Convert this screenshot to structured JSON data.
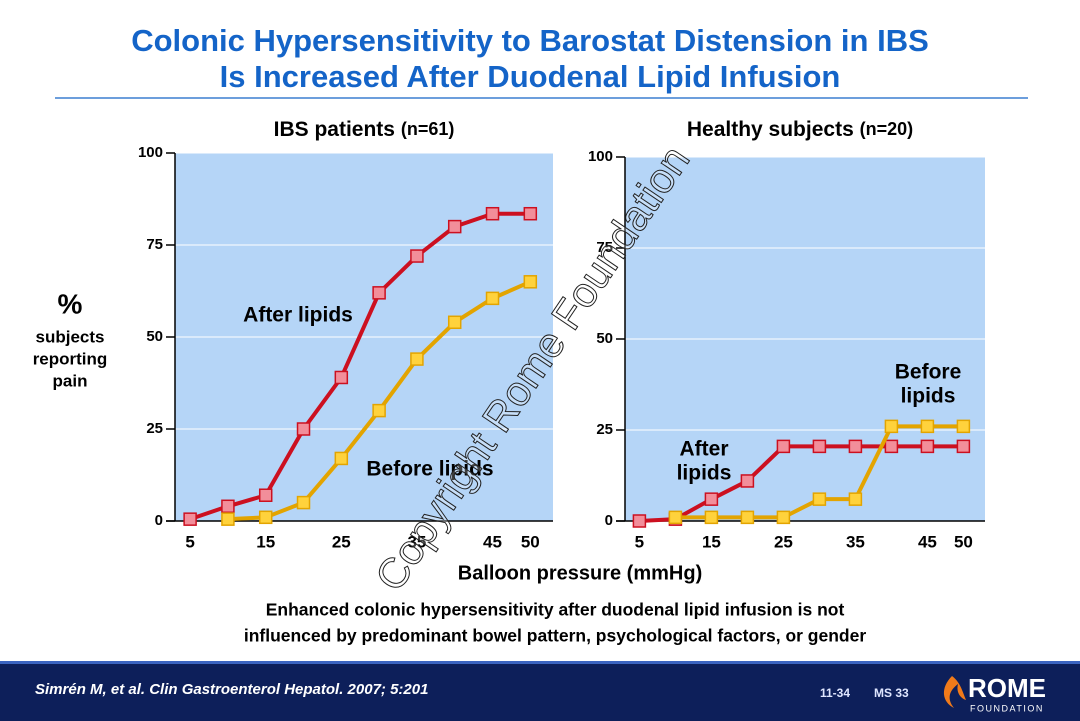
{
  "slide": {
    "title_lines": [
      "Colonic Hypersensitivity to Barostat Distension in IBS",
      "Is Increased After Duodenal Lipid Infusion"
    ],
    "x_axis_label": "Balloon pressure (mmHg)",
    "caption_lines": [
      "Enhanced colonic hypersensitivity after duodenal lipid infusion is not",
      "influenced by predominant  bowel pattern, psychological factors, or gender"
    ],
    "watermark": "Copyright Rome Foundation",
    "citation": "Simrén M, et al. Clin Gastroenterol Hepatol. 2007; 5:201",
    "slide_codes": [
      "11-34",
      "MS 33"
    ],
    "logo": [
      "ROME",
      "FOUNDATION"
    ]
  },
  "chart_data": [
    {
      "type": "line",
      "title": "IBS patients",
      "subtitle": "(n=61)",
      "ylabel": [
        "%",
        "subjects",
        "reporting",
        "pain"
      ],
      "x": [
        5,
        10,
        15,
        20,
        25,
        30,
        35,
        40,
        45,
        50
      ],
      "xlim": [
        3,
        53
      ],
      "xticks": [
        5,
        15,
        25,
        35,
        45,
        50
      ],
      "ylim": [
        0,
        100
      ],
      "yticks": [
        0,
        25,
        50,
        75,
        100
      ],
      "series": [
        {
          "name": "After lipids",
          "color": "#cc1020",
          "values": [
            0.5,
            4,
            7,
            25,
            39,
            62,
            72,
            80,
            83.5,
            83.5
          ]
        },
        {
          "name": "Before lipids",
          "color": "#e3a400",
          "values": [
            null,
            0.5,
            1,
            5,
            17,
            30,
            44,
            54,
            60.5,
            65
          ]
        }
      ],
      "annotations": [
        [
          "After lipids"
        ],
        [
          "Before lipids"
        ]
      ]
    },
    {
      "type": "line",
      "title": "Healthy subjects",
      "subtitle": "(n=20)",
      "x": [
        5,
        10,
        15,
        20,
        25,
        30,
        35,
        40,
        45,
        50
      ],
      "xlim": [
        3,
        53
      ],
      "xticks": [
        5,
        15,
        25,
        35,
        45,
        50
      ],
      "ylim": [
        0,
        100
      ],
      "yticks": [
        0,
        25,
        50,
        75,
        100
      ],
      "series": [
        {
          "name": "After lipids",
          "color": "#cc1020",
          "values": [
            0,
            0.5,
            6,
            11,
            20.5,
            20.5,
            20.5,
            20.5,
            20.5,
            20.5
          ]
        },
        {
          "name": "Before lipids",
          "color": "#e3a400",
          "values": [
            null,
            1,
            1,
            1,
            1,
            6,
            6,
            26,
            26,
            26
          ]
        }
      ],
      "annotations": [
        [
          "After",
          "lipids"
        ],
        [
          "Before",
          "lipids"
        ]
      ]
    }
  ]
}
